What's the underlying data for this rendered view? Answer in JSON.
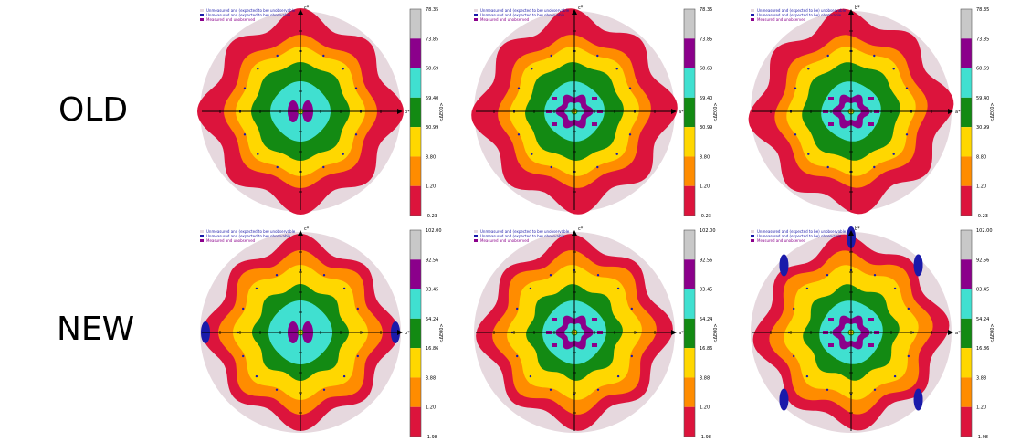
{
  "row_labels": {
    "old": "OLD",
    "new": "NEW"
  },
  "colors": {
    "red": "#dc143c",
    "orange": "#ff8c00",
    "yellow": "#ffd700",
    "green": "#138a13",
    "cyan": "#40e0d0",
    "purple": "#8b008b",
    "grey": "#c8c8c8",
    "blue": "#1a1aaa",
    "pink": "#e6d8de"
  },
  "chart_data": [
    {
      "type": "heatmap",
      "row": "OLD",
      "column": 1,
      "axes": {
        "vertical": "c*",
        "horizontal": "b*"
      },
      "legend": [
        "Unmeasured and (expected to be) unobservable",
        "Unmeasured and (expected to be) observable",
        "Measured and unobserved"
      ],
      "colorbar_label": "<ΔE00>",
      "colorbar_ticks": [
        "78.35",
        "73.85",
        "68.69",
        "59.40",
        "30.99",
        "8.80",
        "1.20",
        "-0.23"
      ]
    },
    {
      "type": "heatmap",
      "row": "OLD",
      "column": 2,
      "axes": {
        "vertical": "c*",
        "horizontal": "a*"
      },
      "legend": [
        "Unmeasured and (expected to be) unobservable",
        "Unmeasured and (expected to be) observable",
        "Measured and unobserved"
      ],
      "colorbar_label": "<ΔE00>",
      "colorbar_ticks": [
        "78.35",
        "73.85",
        "68.69",
        "59.40",
        "30.99",
        "8.80",
        "1.20",
        "-0.23"
      ]
    },
    {
      "type": "heatmap",
      "row": "OLD",
      "column": 3,
      "axes": {
        "vertical": "b*",
        "horizontal": "a*"
      },
      "legend": [
        "Unmeasured and (expected to be) unobservable",
        "Unmeasured and (expected to be) observable",
        "Measured and unobserved"
      ],
      "colorbar_label": "<ΔE00>",
      "colorbar_ticks": [
        "78.35",
        "73.85",
        "68.69",
        "59.40",
        "30.99",
        "8.80",
        "1.20",
        "-0.23"
      ]
    },
    {
      "type": "heatmap",
      "row": "NEW",
      "column": 1,
      "axes": {
        "vertical": "c*",
        "horizontal": "b*"
      },
      "legend": [
        "Unmeasured and (expected to be) unobservable",
        "Unmeasured and (expected to be) observable",
        "Measured and unobserved"
      ],
      "colorbar_label": "<ΔE00>",
      "colorbar_ticks": [
        "102.00",
        "92.56",
        "83.45",
        "54.24",
        "16.86",
        "3.88",
        "1.20",
        "-1.98"
      ]
    },
    {
      "type": "heatmap",
      "row": "NEW",
      "column": 2,
      "axes": {
        "vertical": "c*",
        "horizontal": "a*"
      },
      "legend": [
        "Unmeasured and (expected to be) unobservable",
        "Unmeasured and (expected to be) observable",
        "Measured and unobserved"
      ],
      "colorbar_label": "<ΔE00>",
      "colorbar_ticks": [
        "102.00",
        "92.56",
        "83.45",
        "54.24",
        "16.86",
        "3.88",
        "1.20",
        "-1.98"
      ]
    },
    {
      "type": "heatmap",
      "row": "NEW",
      "column": 3,
      "axes": {
        "vertical": "b*",
        "horizontal": "a*"
      },
      "legend": [
        "Unmeasured and (expected to be) unobservable",
        "Unmeasured and (expected to be) observable",
        "Measured and unobserved"
      ],
      "colorbar_label": "<ΔE00>",
      "colorbar_ticks": [
        "102.00",
        "92.56",
        "83.45",
        "54.24",
        "16.86",
        "3.88",
        "1.20",
        "-1.98"
      ]
    }
  ]
}
